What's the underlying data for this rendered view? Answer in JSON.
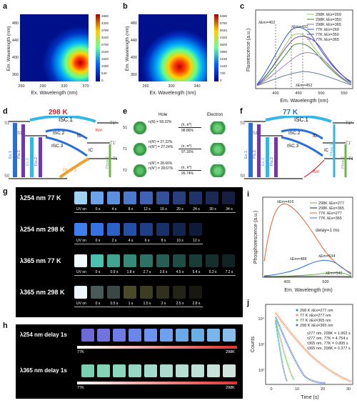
{
  "panels": {
    "a": {
      "label": "a",
      "ylabel": "Em. Wavelength (nm)",
      "xlabel": "Ex. Wavelength (nm)",
      "yticks": [
        "480",
        "440",
        "400",
        "360"
      ],
      "xticks": [
        "250",
        "290",
        "330",
        "370"
      ],
      "colorbar": [
        "4860",
        "4320",
        "3780",
        "3240",
        "2700",
        "2160",
        "1620",
        "1080",
        "540",
        "0"
      ]
    },
    "b": {
      "label": "b",
      "ylabel": "Em. Wavelength (nm)",
      "xlabel": "Ex. Wavelength (nm)",
      "yticks": [
        "480",
        "440",
        "400",
        "360"
      ],
      "xticks": [
        "260",
        "300",
        "340"
      ],
      "colorbar": [
        "6480",
        "5760",
        "5040",
        "4320",
        "3600",
        "2880",
        "2160",
        "1440",
        "720",
        "0"
      ]
    },
    "c": {
      "label": "c",
      "ylabel": "Fluorescence (a.u.)",
      "xlabel": "Em. Wavelength (nm)",
      "xticks": [
        "400",
        "450",
        "500",
        "550"
      ],
      "legend": [
        "298K λEx=269",
        "298K λEx=350",
        "298K λEx=365",
        "77K λEx=269",
        "77K λEx=350",
        "77K λEx=365"
      ],
      "annotations": [
        "λEm=402",
        "λEm=432",
        "λEm=452"
      ]
    },
    "d": {
      "label": "d",
      "temp": "298 K",
      "labels": [
        "S1'",
        "S1",
        "S0",
        "ISC.1",
        "ISC.2",
        "ISC.3",
        "IC",
        "IC",
        "Ex.1",
        "Flu.1",
        "Ex.2",
        "Flu.2",
        "Phos.3",
        "Phos.2",
        "T1''",
        "T1'",
        "T1",
        "Knr"
      ]
    },
    "e": {
      "label": "e",
      "hole": "Hole",
      "electron": "Electron",
      "rows": [
        {
          "state": "S1",
          "line1": "n(N) = 58.32%",
          "line2": "",
          "trans": "(n, π*)",
          "pct": "98.86%"
        },
        {
          "state": "T1",
          "line1": "n(N') = 27.22%",
          "line2": "n(N'') = 27.24%",
          "trans": "(n, π*)",
          "pct": "97.16%"
        },
        {
          "state": "T2",
          "line1": "n(N') = 28.66%",
          "line2": "n(N'') = 28.67%",
          "trans": "(n, π*)",
          "pct": "99.74%"
        }
      ]
    },
    "f": {
      "label": "f",
      "temp": "77 K",
      "labels": [
        "S1'",
        "S1",
        "S0",
        "ISC.1",
        "ISC.2",
        "ISC.3",
        "IC",
        "IC",
        "Ex.1",
        "Flu.1",
        "Ex.2",
        "Flu.2",
        "Phos.1",
        "Phos.2",
        "T1''",
        "T1'",
        "T1",
        "Knr"
      ]
    },
    "g": {
      "label": "g",
      "rows": [
        {
          "title": "λ254 nm  77 K",
          "times": [
            "UV on",
            "0 s",
            "4 s",
            "8 s",
            "12 s",
            "16 s",
            "20 s",
            "24 s",
            "30 s",
            "34 s"
          ],
          "colors": [
            "#9fd3f5",
            "#6ba4ea",
            "#5c8fe0",
            "#4d78cf",
            "#3f62b5",
            "#33509a",
            "#28407e",
            "#213368",
            "#1b2954",
            "#161f42"
          ]
        },
        {
          "title": "λ254 nm  298 K",
          "times": [
            "UV on",
            "0 s",
            "2 s",
            "4 s",
            "6 s",
            "8 s",
            "10 s",
            "12 s"
          ],
          "colors": [
            "#3b7ff0",
            "#3372e0",
            "#2b60c6",
            "#244fa6",
            "#1e3f86",
            "#183168",
            "#13244e",
            "#0e1a38"
          ]
        },
        {
          "title": "λ365 nm  77 K",
          "times": [
            "UV on",
            "0 s",
            "0.9 s",
            "1.8 s",
            "2.7 s",
            "3.6 s",
            "4.5 s",
            "5.4 s",
            "6.3 s",
            "7.2 s"
          ],
          "colors": [
            "#f4fbff",
            "#4ec0b0",
            "#3fa590",
            "#358a78",
            "#2d7264",
            "#265e54",
            "#1f4c45",
            "#193c38",
            "#142f2d",
            "#0f2423"
          ]
        },
        {
          "title": "λ365 nm  298 K",
          "times": [
            "UV on",
            "0 s",
            "0.5 s",
            "1 s",
            "1.5 s",
            "2 s",
            "2.5 s",
            "2.8 s"
          ],
          "colors": [
            "#eef6ff",
            "#4a5a58",
            "#3c4846",
            "#4a4a2a",
            "#3d3d22",
            "#30301c",
            "#232316",
            "#181810"
          ]
        }
      ]
    },
    "h": {
      "label": "h",
      "rows": [
        {
          "title": "λ254 nm delay 1s",
          "from": "77K",
          "to": "298K",
          "colors": [
            "#6e6ad8",
            "#7373e0",
            "#6f7be6",
            "#6b86ea",
            "#6c94ee",
            "#6fa0ef",
            "#6aa8ea",
            "#6aaee6",
            "#79b6ea",
            "#86bfee"
          ]
        },
        {
          "title": "λ365 nm delay 1s",
          "from": "77K",
          "to": "298K",
          "colors": [
            "#7bd0b0",
            "#84d4b6",
            "#8cd6bd",
            "#96d8c4",
            "#a2dacb",
            "#acdcd0",
            "#b6ddd2",
            "#bee0d6",
            "#c6e2da",
            "#cfe4dd"
          ]
        }
      ]
    },
    "i": {
      "label": "i",
      "ylabel": "Phosphorescence (a.u.)",
      "xlabel": "Em. Wavelength (nm)",
      "xticks": [
        "400",
        "500"
      ],
      "legend": [
        "298K λEx=277",
        "298K λEx=365",
        "77K λEx=277",
        "77K λEx=365"
      ],
      "annotations": [
        "λEm=416",
        "λEm=488",
        "λEm=534",
        "λEm=542"
      ],
      "note": "delay=1 ms"
    },
    "j": {
      "label": "j",
      "ylabel": "Counts",
      "xlabel": "Time (s)",
      "xticks": [
        "0",
        "10",
        "20",
        "30"
      ],
      "yticks": [
        "10⁴",
        "10³",
        "10²"
      ],
      "legend": [
        "298 K λEx=277 nm",
        "77 K λEx=277 nm",
        "77 K λEx=365 nm",
        "298 K λEx=365 nm"
      ],
      "lifetimes": [
        "τ277 nm, 298K = 1.962 s",
        "τ277 nm, 77K = 4.754 s",
        "τ365 nm, 77K = 0.895 s",
        "τ365 nm, 298K = 0.377 s"
      ]
    }
  },
  "colors": {
    "red": "#d8242a",
    "blue": "#2a6fd6",
    "purple": "#6f3aa8",
    "green": "#6bb54a",
    "orange": "#f0a030",
    "cyan": "#36b6e6"
  }
}
